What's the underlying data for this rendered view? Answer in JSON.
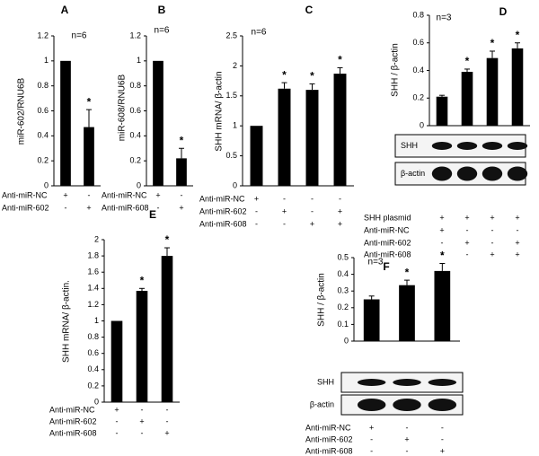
{
  "chart_data": [
    {
      "type": "bar",
      "panel": "A",
      "annotation": "n=6",
      "ylabel": "miR-602/RNU6B",
      "color": "#000000",
      "categories": [
        null,
        null
      ],
      "values": [
        1.0,
        0.47
      ],
      "errors": [
        0,
        0.14
      ],
      "stars": [
        {
          "index": 1,
          "text": "*"
        }
      ],
      "ylim": [
        0,
        1.2
      ],
      "yticks": [
        0,
        0.2,
        0.4,
        0.6,
        0.8,
        1,
        1.2
      ],
      "treatments": [
        {
          "name": "Anti-miR-NC",
          "signs": [
            "+",
            "-"
          ]
        },
        {
          "name": "Anti-miR-602",
          "signs": [
            "-",
            "+"
          ]
        }
      ]
    },
    {
      "type": "bar",
      "panel": "B",
      "annotation": "n=6",
      "ylabel": "miR-608/RNU6B",
      "color": "#000000",
      "categories": [
        null,
        null
      ],
      "values": [
        1.0,
        0.22
      ],
      "errors": [
        0,
        0.08
      ],
      "stars": [
        {
          "index": 1,
          "text": "*"
        }
      ],
      "ylim": [
        0,
        1.2
      ],
      "yticks": [
        0,
        0.2,
        0.4,
        0.6,
        0.8,
        1,
        1.2
      ],
      "treatments": [
        {
          "name": "Anti-miR-NC",
          "signs": [
            "+",
            "-"
          ]
        },
        {
          "name": "Anti-miR-608",
          "signs": [
            "-",
            "+"
          ]
        }
      ]
    },
    {
      "type": "bar",
      "panel": "C",
      "annotation": "n=6",
      "ylabel": "SHH mRNA/ β-actin",
      "color": "#000000",
      "categories": [
        null,
        null,
        null,
        null
      ],
      "values": [
        1.0,
        1.62,
        1.6,
        1.87
      ],
      "errors": [
        0,
        0.1,
        0.1,
        0.1
      ],
      "stars": [
        {
          "index": 1,
          "text": "*"
        },
        {
          "index": 2,
          "text": "*"
        },
        {
          "index": 3,
          "text": "*"
        }
      ],
      "ylim": [
        0,
        2.5
      ],
      "yticks": [
        0,
        0.5,
        1,
        1.5,
        2,
        2.5
      ],
      "treatments": [
        {
          "name": "Anti-miR-NC",
          "signs": [
            "+",
            "-",
            "-",
            "-"
          ]
        },
        {
          "name": "Anti-miR-602",
          "signs": [
            "-",
            "+",
            "-",
            "+"
          ]
        },
        {
          "name": "Anti-miR-608",
          "signs": [
            "-",
            "-",
            "+",
            "+"
          ]
        }
      ]
    },
    {
      "type": "bar",
      "panel": "D",
      "annotation": "n=3",
      "ylabel": "SHH / β-actin",
      "color": "#000000",
      "categories": [
        null,
        null,
        null,
        null
      ],
      "values": [
        0.21,
        0.39,
        0.49,
        0.56
      ],
      "errors": [
        0.01,
        0.02,
        0.05,
        0.04
      ],
      "stars": [
        {
          "index": 1,
          "text": "*"
        },
        {
          "index": 2,
          "text": "*"
        },
        {
          "index": 3,
          "text": "*"
        }
      ],
      "ylim": [
        0,
        0.8
      ],
      "yticks": [
        0,
        0.2,
        0.4,
        0.6,
        0.8
      ],
      "blots": [
        "SHH",
        "β-actin"
      ],
      "treatments": [
        {
          "name": "SHH plasmid",
          "signs": [
            "+",
            "+",
            "+",
            "+"
          ]
        },
        {
          "name": "Anti-miR-NC",
          "signs": [
            "+",
            "-",
            "-",
            "-"
          ]
        },
        {
          "name": "Anti-miR-602",
          "signs": [
            "-",
            "+",
            "-",
            "+"
          ]
        },
        {
          "name": "Anti-miR-608",
          "signs": [
            "-",
            "-",
            "+",
            "+"
          ]
        }
      ]
    },
    {
      "type": "bar",
      "panel": "E",
      "ylabel": "SHH mRNA/ β-actin.",
      "color": "#000000",
      "categories": [
        null,
        null,
        null
      ],
      "values": [
        1.0,
        1.37,
        1.8
      ],
      "errors": [
        0,
        0.03,
        0.1
      ],
      "stars": [
        {
          "index": 1,
          "text": "*"
        },
        {
          "index": 2,
          "text": "*"
        }
      ],
      "ylim": [
        0,
        2
      ],
      "yticks": [
        0,
        0.2,
        0.4,
        0.6,
        0.8,
        1,
        1.2,
        1.4,
        1.6,
        1.8,
        2
      ],
      "treatments": [
        {
          "name": "Anti-miR-NC",
          "signs": [
            "+",
            "-",
            "-"
          ]
        },
        {
          "name": "Anti-miR-602",
          "signs": [
            "-",
            "+",
            "-"
          ]
        },
        {
          "name": "Anti-miR-608",
          "signs": [
            "-",
            "-",
            "+"
          ]
        }
      ]
    },
    {
      "type": "bar",
      "panel": "F",
      "annotation": "n=3",
      "ylabel": "SHH / β-actin",
      "color": "#000000",
      "categories": [
        null,
        null,
        null
      ],
      "values": [
        0.25,
        0.335,
        0.42
      ],
      "errors": [
        0.02,
        0.03,
        0.045
      ],
      "stars": [
        {
          "index": 1,
          "text": "*"
        },
        {
          "index": 2,
          "text": "*"
        }
      ],
      "ylim": [
        0,
        0.5
      ],
      "yticks": [
        0,
        0.1,
        0.2,
        0.3,
        0.4,
        0.5
      ],
      "blots": [
        "SHH",
        "β-actin"
      ],
      "treatments": [
        {
          "name": "Anti-miR-NC",
          "signs": [
            "+",
            "-",
            "-"
          ]
        },
        {
          "name": "Anti-miR-602",
          "signs": [
            "-",
            "+",
            "-"
          ]
        },
        {
          "name": "Anti-miR-608",
          "signs": [
            "-",
            "-",
            "+"
          ]
        }
      ]
    }
  ]
}
